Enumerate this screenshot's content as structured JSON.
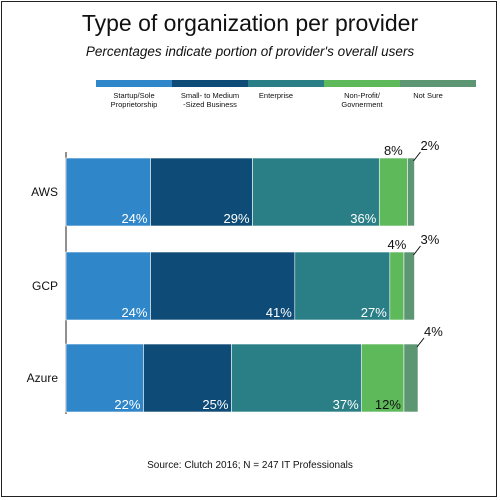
{
  "chart_data": {
    "type": "bar",
    "orientation": "horizontal",
    "stacked": true,
    "title": "Type of organization per provider",
    "subtitle": "Percentages indicate portion of provider's overall users",
    "source": "Source: Clutch 2016; N = 247 IT Professionals",
    "categories": [
      "AWS",
      "GCP",
      "Azure"
    ],
    "series": [
      {
        "name": "Startup/Sole Proprietorship",
        "name_lines": [
          "Startup/Sole",
          "Proprietorship"
        ],
        "color": "#2f86c9",
        "values": [
          24,
          24,
          22
        ],
        "labels": [
          "24%",
          "24%",
          "22%"
        ]
      },
      {
        "name": "Small- to Medium -Sized Business",
        "name_lines": [
          "Small- to Medium",
          "-Sized Business"
        ],
        "color": "#0e4c77",
        "values": [
          29,
          41,
          25
        ],
        "labels": [
          "29%",
          "41%",
          "25%"
        ]
      },
      {
        "name": "Enterprise",
        "name_lines": [
          "Enterprise"
        ],
        "color": "#2a7f86",
        "values": [
          36,
          27,
          37
        ],
        "labels": [
          "36%",
          "27%",
          "37%"
        ]
      },
      {
        "name": "Non-Profit/ Govnerment",
        "name_lines": [
          "Non-Profit/",
          "Govnerment"
        ],
        "color": "#5db95a",
        "values": [
          8,
          4,
          12
        ],
        "labels": [
          "8%",
          "4%",
          "12%"
        ]
      },
      {
        "name": "Not Sure",
        "name_lines": [
          "Not Sure"
        ],
        "color": "#5d9673",
        "values": [
          2,
          3,
          4
        ],
        "labels": [
          "2%",
          "3%",
          "4%"
        ]
      }
    ],
    "xlim": [
      0,
      100
    ],
    "legend_position": "top",
    "grid": false
  }
}
